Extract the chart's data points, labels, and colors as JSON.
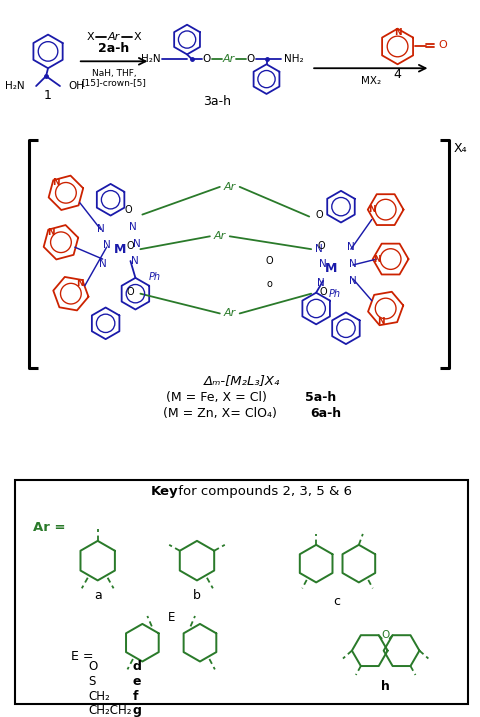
{
  "bg_color": "#ffffff",
  "black": "#000000",
  "blue": "#1a1aaa",
  "green": "#2a7a2a",
  "red": "#cc2200",
  "lw": 1.3,
  "compound_1": "1",
  "compound_3": "3a-h",
  "reagent_1": "2a-h",
  "conditions_1a": "NaH, THF,",
  "conditions_1b": "[15]-crown-[5]",
  "reagent_2": "4",
  "conditions_2": "MX₂",
  "x4_label": "X₄",
  "complex_line1": "Δₘ-[M₂L₃]X₄",
  "complex_line2": "(M = Fe, X = Cl)",
  "complex_line2b": "5a-h",
  "complex_line3": "(M = Zn, X= ClO₄)",
  "complex_line3b": "6a-h",
  "key_bold": "Key",
  "key_rest": " for compounds 2, 3, 5 & 6",
  "ar_label": "Ar =",
  "sub_a": "a",
  "sub_b": "b",
  "sub_c": "c",
  "sub_h": "h",
  "e_equal": "E =",
  "e_values": [
    "O",
    "S",
    "CH₂",
    "CH₂CH₂"
  ],
  "e_keys": [
    "d",
    "e",
    "f",
    "g"
  ]
}
